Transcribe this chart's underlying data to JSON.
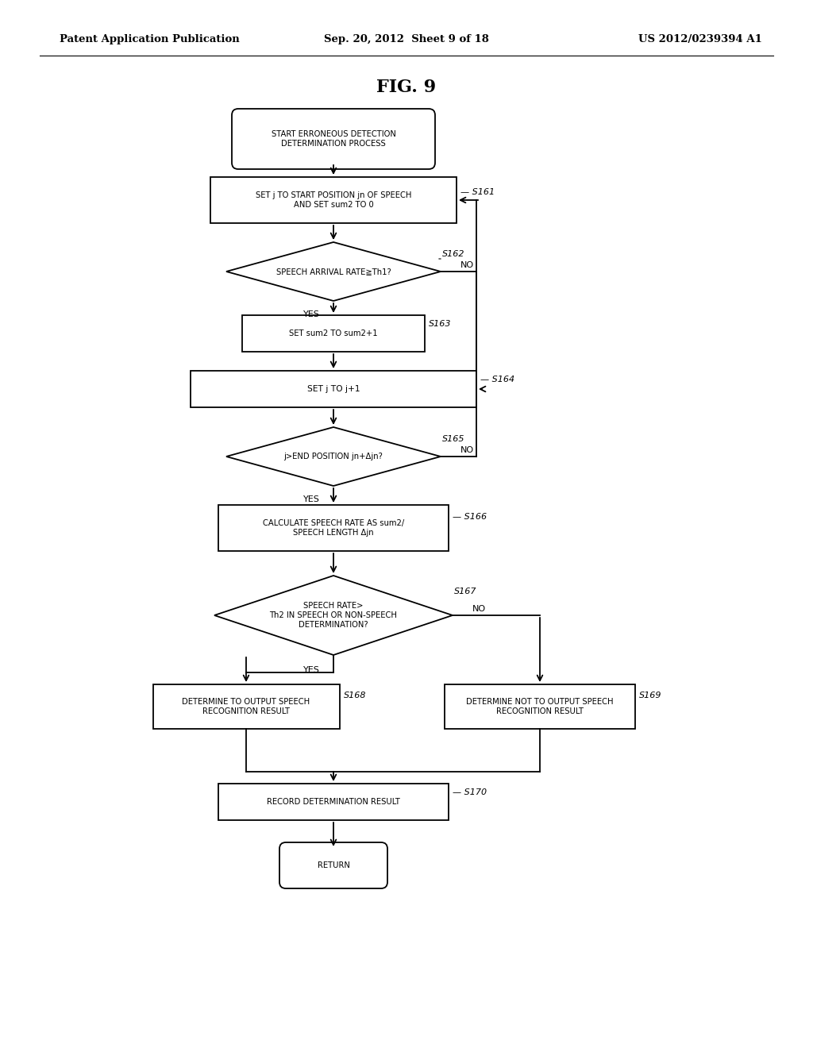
{
  "bg_color": "#ffffff",
  "header_left": "Patent Application Publication",
  "header_center": "Sep. 20, 2012  Sheet 9 of 18",
  "header_right": "US 2012/0239394 A1",
  "fig_title": "FIG. 9",
  "text_fontsize": 7.2,
  "label_fontsize": 8.0,
  "header_fontsize": 9.5
}
